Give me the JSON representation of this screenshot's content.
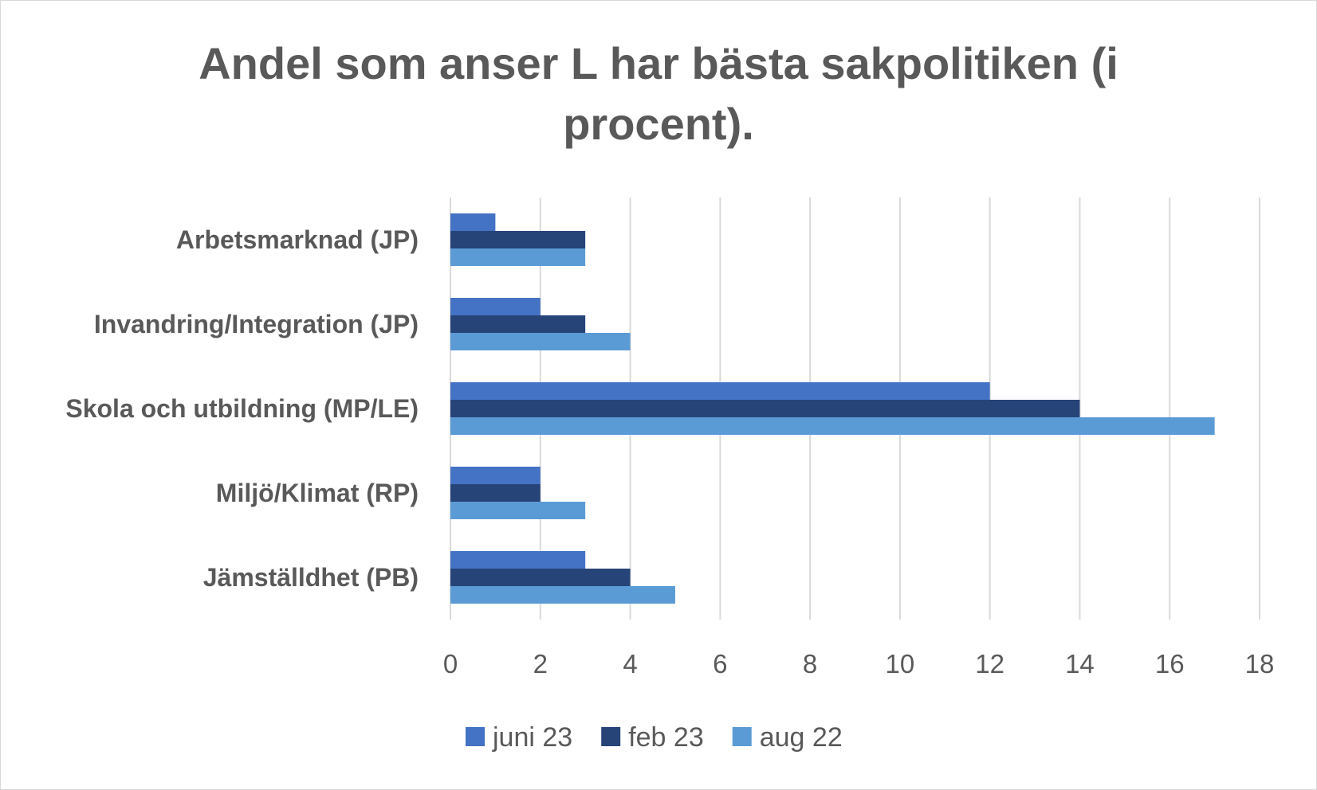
{
  "chart_data": {
    "type": "bar",
    "orientation": "horizontal",
    "title_line1": "Andel som anser  L har bästa sakpolitiken (i",
    "title_line2": "procent).",
    "categories": [
      "Arbetsmarknad (JP)",
      "Invandring/Integration (JP)",
      "Skola och utbildning (MP/LE)",
      "Miljö/Klimat (RP)",
      "Jämställdhet (PB)"
    ],
    "series": [
      {
        "name": "juni 23",
        "color": "#4472C4",
        "values": [
          1,
          2,
          12,
          2,
          3
        ]
      },
      {
        "name": "feb 23",
        "color": "#264478",
        "values": [
          3,
          3,
          14,
          2,
          4
        ]
      },
      {
        "name": "aug 22",
        "color": "#5B9BD5",
        "values": [
          3,
          4,
          17,
          3,
          5
        ]
      }
    ],
    "xlim": [
      0,
      18
    ],
    "xticks": [
      "0",
      "2",
      "4",
      "6",
      "8",
      "10",
      "12",
      "14",
      "16",
      "18"
    ],
    "grid": true,
    "legend_position": "bottom"
  }
}
